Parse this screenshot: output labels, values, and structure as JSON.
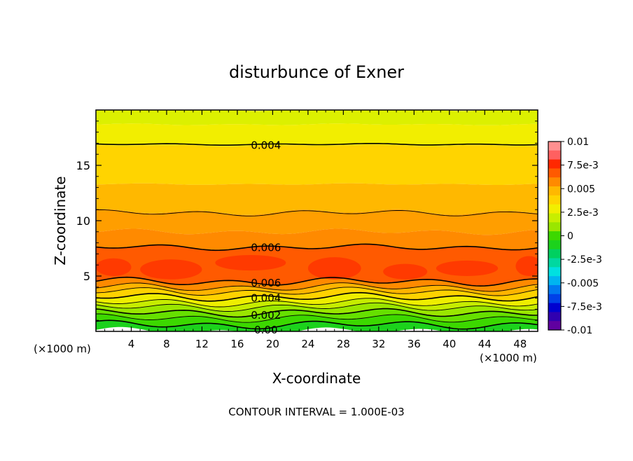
{
  "chart_data": {
    "type": "contour",
    "title": "disturbunce of Exner",
    "xlabel": "X-coordinate",
    "ylabel": "Z-coordinate",
    "x_unit_left": "(×1000 m)",
    "x_unit_right": "(×1000 m)",
    "xlim": [
      0,
      50
    ],
    "ylim": [
      0,
      20
    ],
    "x_ticks": [
      4,
      8,
      12,
      16,
      20,
      24,
      28,
      32,
      36,
      40,
      44,
      48
    ],
    "y_ticks": [
      5,
      10,
      15
    ],
    "contour_interval_text": "CONTOUR INTERVAL = 1.000E-03",
    "contour_labels": [
      {
        "text": "0.004",
        "x": 17.5,
        "z": 16.9
      },
      {
        "text": "0.006",
        "x": 17.5,
        "z": 7.6
      },
      {
        "text": "0.006",
        "x": 17.5,
        "z": 4.5
      },
      {
        "text": "0.004",
        "x": 17.5,
        "z": 3.0
      },
      {
        "text": "0.002",
        "x": 17.5,
        "z": 1.8
      },
      {
        "text": "0.00",
        "x": 17.5,
        "z": 0.5
      }
    ],
    "field_layers": [
      {
        "z_top": 20.0,
        "z_bot": 18.7,
        "color": "#dcf000"
      },
      {
        "z_top": 18.7,
        "z_bot": 16.8,
        "color": "#f2ee00"
      },
      {
        "z_top": 16.8,
        "z_bot": 13.3,
        "color": "#ffd400"
      },
      {
        "z_top": 13.3,
        "z_bot": 10.8,
        "color": "#ffb800"
      },
      {
        "z_top": 10.8,
        "z_bot": 9.0,
        "color": "#ff9e00"
      },
      {
        "z_top": 9.0,
        "z_bot": 7.6,
        "color": "#ff8a00"
      },
      {
        "z_top": 7.6,
        "z_bot": 4.5,
        "color": "#ff5a00"
      },
      {
        "z_top": 4.5,
        "z_bot": 4.0,
        "color": "#ff8a00"
      },
      {
        "z_top": 4.0,
        "z_bot": 3.6,
        "color": "#ffb400"
      },
      {
        "z_top": 3.6,
        "z_bot": 3.1,
        "color": "#ffd200"
      },
      {
        "z_top": 3.1,
        "z_bot": 2.6,
        "color": "#eeee00"
      },
      {
        "z_top": 2.6,
        "z_bot": 2.2,
        "color": "#c6ec00"
      },
      {
        "z_top": 2.2,
        "z_bot": 1.7,
        "color": "#9ae600"
      },
      {
        "z_top": 1.7,
        "z_bot": 1.2,
        "color": "#66e000"
      },
      {
        "z_top": 1.2,
        "z_bot": 0.6,
        "color": "#3cd800"
      },
      {
        "z_top": 0.6,
        "z_bot": 0.0,
        "color": "#1cd21c"
      }
    ],
    "hot_blobs": [
      {
        "x": 2.0,
        "z": 5.8,
        "rx": 2.0,
        "rz": 0.8
      },
      {
        "x": 8.5,
        "z": 5.6,
        "rx": 3.5,
        "rz": 0.9
      },
      {
        "x": 17.5,
        "z": 6.2,
        "rx": 4.0,
        "rz": 0.7
      },
      {
        "x": 27.0,
        "z": 5.7,
        "rx": 3.0,
        "rz": 1.0
      },
      {
        "x": 35.0,
        "z": 5.4,
        "rx": 2.5,
        "rz": 0.7
      },
      {
        "x": 42.0,
        "z": 5.7,
        "rx": 3.5,
        "rz": 0.7
      },
      {
        "x": 49.0,
        "z": 5.9,
        "rx": 1.5,
        "rz": 0.9
      }
    ],
    "contour_lines": [
      16.9,
      10.7,
      7.6,
      4.5,
      4.0,
      3.6,
      3.1,
      2.6,
      2.2,
      1.7,
      1.2,
      0.6
    ],
    "colorbar": {
      "min": -0.01,
      "max": 0.01,
      "labels": [
        "0.01",
        "7.5e-3",
        "0.005",
        "2.5e-3",
        "0",
        "-2.5e-3",
        "-0.005",
        "-7.5e-3",
        "-0.01"
      ],
      "colors": [
        "#ff9090",
        "#ff6060",
        "#ff2800",
        "#ff5a00",
        "#ff8a00",
        "#ffb800",
        "#ffd400",
        "#f2ee00",
        "#c8ee00",
        "#9ae600",
        "#3cd800",
        "#1cd21c",
        "#00d060",
        "#00d8a0",
        "#00e0e0",
        "#00b4f0",
        "#0078f0",
        "#0040e8",
        "#0000d0",
        "#3000b0",
        "#6000a0"
      ]
    }
  }
}
